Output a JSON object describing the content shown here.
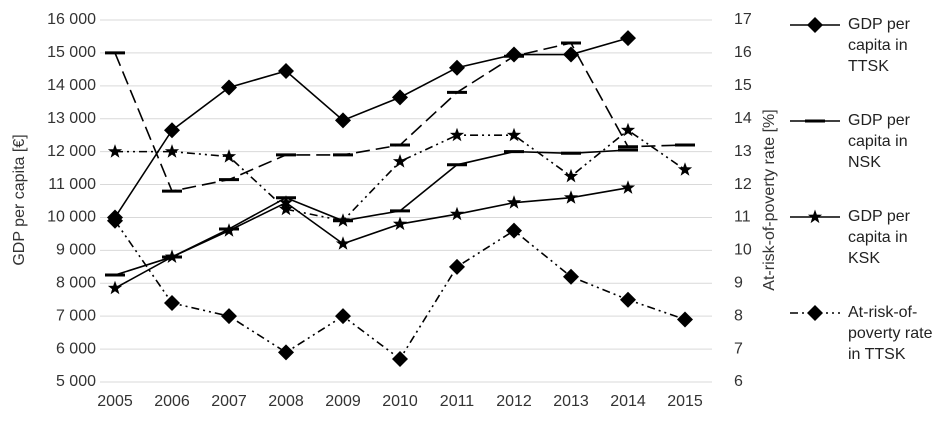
{
  "chart_data": {
    "type": "line",
    "categories": [
      "2005",
      "2006",
      "2007",
      "2008",
      "2009",
      "2010",
      "2011",
      "2012",
      "2013",
      "2014",
      "2015"
    ],
    "ylabel": "GDP per capita [€]",
    "y2label": "At-risk-of-poverty rate [%]",
    "ylim": [
      5000,
      16000
    ],
    "yticks": [
      {
        "value": 5000,
        "label": "5 000"
      },
      {
        "value": 6000,
        "label": "6 000"
      },
      {
        "value": 7000,
        "label": "7 000"
      },
      {
        "value": 8000,
        "label": "8 000"
      },
      {
        "value": 9000,
        "label": "9 000"
      },
      {
        "value": 10000,
        "label": "10 000"
      },
      {
        "value": 11000,
        "label": "11 000"
      },
      {
        "value": 12000,
        "label": "12 000"
      },
      {
        "value": 13000,
        "label": "13 000"
      },
      {
        "value": 14000,
        "label": "14 000"
      },
      {
        "value": 15000,
        "label": "15 000"
      },
      {
        "value": 16000,
        "label": "16 000"
      }
    ],
    "y2lim": [
      6,
      17
    ],
    "y2ticks": [
      6,
      7,
      8,
      9,
      10,
      11,
      12,
      13,
      14,
      15,
      16,
      17
    ],
    "grid": true,
    "legend": "right",
    "series": [
      {
        "name": "GDP per capita in TTSK",
        "color": "#000000",
        "marker": "diamond",
        "dash": "solid",
        "values": [
          10000,
          12650,
          13950,
          14450,
          12950,
          13650,
          14550,
          14950,
          14950,
          15450,
          null
        ]
      },
      {
        "name": "GDP per capita in NSK",
        "color": "#000000",
        "marker": "dash",
        "dash": "solid",
        "values": [
          8250,
          8800,
          9650,
          10600,
          9900,
          10200,
          11600,
          12000,
          11950,
          12050,
          null
        ]
      },
      {
        "name": "GDP per capita in KSK",
        "color": "#000000",
        "marker": "star",
        "dash": "solid",
        "values": [
          7850,
          8800,
          9600,
          10450,
          9200,
          9800,
          10100,
          10450,
          10600,
          10900,
          null
        ]
      },
      {
        "name": "At-risk-of-poverty rate in TTSK",
        "color": "#000000",
        "marker": "diamond",
        "dash": "dash-dot-dot",
        "axis": "y2",
        "values": [
          10.9,
          8.4,
          8.0,
          6.9,
          8.0,
          6.7,
          9.5,
          10.6,
          9.2,
          8.5,
          7.9
        ]
      },
      {
        "color": "#000000",
        "marker": "dash",
        "dash": "long-dash",
        "axis": "y2",
        "values": [
          16.0,
          11.8,
          12.15,
          12.9,
          12.9,
          13.2,
          14.8,
          15.9,
          16.3,
          13.15,
          13.2
        ]
      },
      {
        "color": "#000000",
        "marker": "star",
        "dash": "dash-dot-dot",
        "axis": "y2",
        "values": [
          13.0,
          13.0,
          12.85,
          11.25,
          10.9,
          12.7,
          13.5,
          13.5,
          12.25,
          13.65,
          12.45
        ]
      }
    ]
  }
}
